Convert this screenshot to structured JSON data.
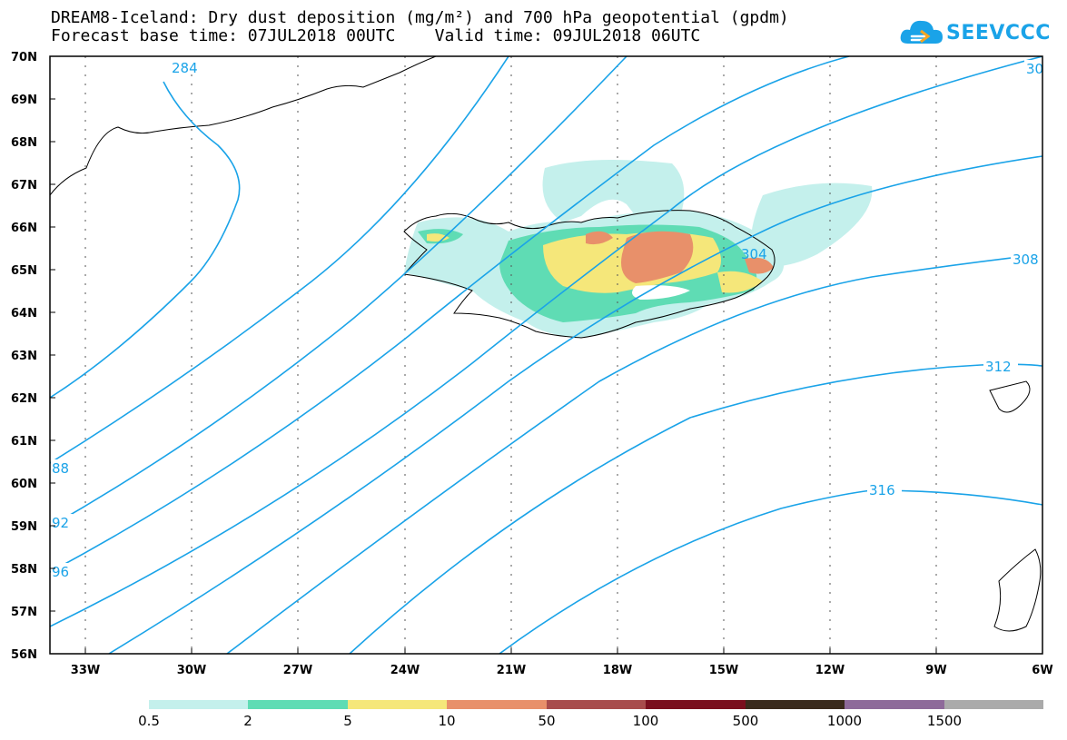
{
  "title_line1": "DREAM8-Iceland: Dry dust deposition (mg/m²) and 700 hPa geopotential (gpdm)",
  "title_line2": "Forecast base time: 07JUL2018 00UTC    Valid time: 09JUL2018 06UTC",
  "logo_text": "SEEVCCC",
  "map": {
    "lat_labels": [
      "70N",
      "69N",
      "68N",
      "67N",
      "66N",
      "65N",
      "64N",
      "63N",
      "62N",
      "61N",
      "60N",
      "59N",
      "58N",
      "57N",
      "56N"
    ],
    "lon_labels": [
      "33W",
      "30W",
      "27W",
      "24W",
      "21W",
      "18W",
      "15W",
      "12W",
      "9W",
      "6W"
    ],
    "contour_labels": [
      "284",
      "88",
      "92",
      "96",
      "304",
      "308",
      "312",
      "316",
      "30"
    ],
    "line_color": "#1aa3e8"
  },
  "legend": {
    "labels": [
      "0.5",
      "2",
      "5",
      "10",
      "50",
      "100",
      "500",
      "1000",
      "1500"
    ],
    "colors": [
      "#c4f0ec",
      "#5fdcb4",
      "#f5e77a",
      "#e8906a",
      "#a84c4c",
      "#7a0f1e",
      "#3a2a1c",
      "#8e6a9a",
      "#aaaaaa"
    ]
  }
}
